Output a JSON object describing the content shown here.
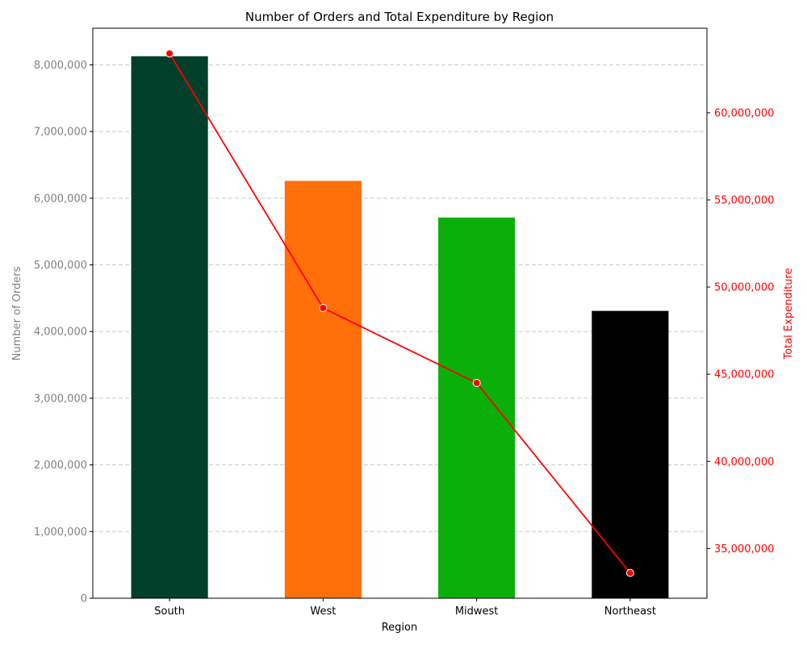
{
  "chart_data": {
    "type": "bar",
    "title": "Number of Orders and Total Expenditure by Region",
    "xlabel": "Region",
    "ylabel_left": "Number of Orders",
    "ylabel_right": "Total Expenditure",
    "categories": [
      "South",
      "West",
      "Midwest",
      "Northeast"
    ],
    "series": [
      {
        "type": "bar",
        "axis": "left",
        "values": [
          8130000,
          6260000,
          5710000,
          4310000
        ],
        "colors": [
          "#003f29",
          "#ff6f0a",
          "#0aaf0a",
          "#000000"
        ]
      },
      {
        "type": "line",
        "axis": "right",
        "color": "#ff0000",
        "values": [
          63400000,
          48800000,
          44500000,
          33600000
        ]
      }
    ],
    "ylim_left": [
      0,
      8550000
    ],
    "ylim_right": [
      32150000,
      64850000
    ],
    "yticks_left": [
      0,
      1000000,
      2000000,
      3000000,
      4000000,
      5000000,
      6000000,
      7000000,
      8000000
    ],
    "yticks_left_labels": [
      "0",
      "1,000,000",
      "2,000,000",
      "3,000,000",
      "4,000,000",
      "5,000,000",
      "6,000,000",
      "7,000,000",
      "8,000,000"
    ],
    "yticks_right": [
      35000000,
      40000000,
      45000000,
      50000000,
      55000000,
      60000000
    ],
    "yticks_right_labels": [
      "35,000,000",
      "40,000,000",
      "45,000,000",
      "50,000,000",
      "55,000,000",
      "60,000,000"
    ],
    "grid": true,
    "colors": {
      "left_axis_text": "#808080",
      "right_axis": "#ff0000",
      "grid": "#c8c8c8"
    }
  }
}
